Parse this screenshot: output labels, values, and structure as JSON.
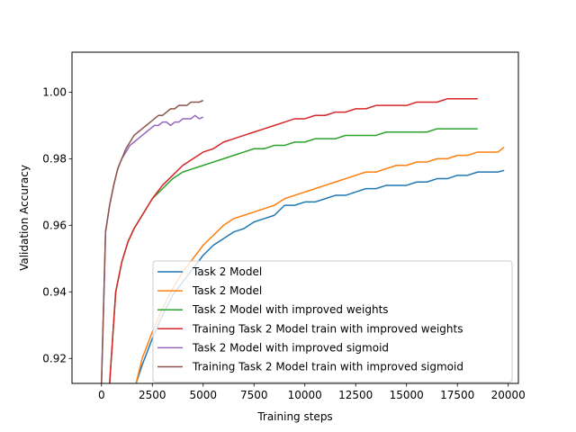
{
  "chart_data": {
    "type": "line",
    "title": "",
    "xlabel": "Training steps",
    "ylabel": "Validation Accuracy",
    "xlim": [
      -1450,
      20500
    ],
    "ylim": [
      0.9125,
      1.012
    ],
    "xticks": [
      0,
      2500,
      5000,
      7500,
      10000,
      12500,
      15000,
      17500,
      20000
    ],
    "yticks": [
      0.92,
      0.94,
      0.96,
      0.98,
      1.0
    ],
    "xtick_labels": [
      "0",
      "2500",
      "5000",
      "7500",
      "10000",
      "12500",
      "15000",
      "17500",
      "20000"
    ],
    "ytick_labels": [
      "0.92",
      "0.94",
      "0.96",
      "0.98",
      "1.00"
    ],
    "grid": false,
    "legend_position": "lower-right",
    "series": [
      {
        "name": "Task 2 Model",
        "color": "#1f77b4",
        "x": [
          1700,
          2000,
          2500,
          3000,
          3500,
          4000,
          4500,
          5000,
          5500,
          6000,
          6500,
          7000,
          7500,
          8000,
          8500,
          9000,
          9500,
          10000,
          10500,
          11000,
          11500,
          12000,
          12500,
          13000,
          13500,
          14000,
          14500,
          15000,
          15500,
          16000,
          16500,
          17000,
          17500,
          18000,
          18500,
          19000,
          19500,
          19800
        ],
        "y": [
          0.9125,
          0.918,
          0.926,
          0.933,
          0.939,
          0.943,
          0.947,
          0.951,
          0.954,
          0.956,
          0.958,
          0.959,
          0.961,
          0.962,
          0.963,
          0.966,
          0.966,
          0.967,
          0.967,
          0.968,
          0.969,
          0.969,
          0.97,
          0.971,
          0.971,
          0.972,
          0.972,
          0.972,
          0.973,
          0.973,
          0.974,
          0.974,
          0.975,
          0.975,
          0.976,
          0.976,
          0.976,
          0.9765
        ]
      },
      {
        "name": "Task 2 Model",
        "color": "#ff7f0e",
        "x": [
          1700,
          2000,
          2500,
          3000,
          3500,
          4000,
          4500,
          5000,
          5500,
          6000,
          6500,
          7000,
          7500,
          8000,
          8500,
          9000,
          9500,
          10000,
          10500,
          11000,
          11500,
          12000,
          12500,
          13000,
          13500,
          14000,
          14500,
          15000,
          15500,
          16000,
          16500,
          17000,
          17500,
          18000,
          18500,
          19000,
          19500,
          19800
        ],
        "y": [
          0.9125,
          0.92,
          0.928,
          0.935,
          0.941,
          0.946,
          0.95,
          0.954,
          0.957,
          0.96,
          0.962,
          0.963,
          0.964,
          0.965,
          0.966,
          0.968,
          0.969,
          0.97,
          0.971,
          0.972,
          0.973,
          0.974,
          0.975,
          0.976,
          0.976,
          0.977,
          0.978,
          0.978,
          0.979,
          0.979,
          0.98,
          0.98,
          0.981,
          0.981,
          0.982,
          0.982,
          0.982,
          0.9835
        ]
      },
      {
        "name": "Task 2 Model with improved weights",
        "color": "#2ca02c",
        "x": [
          400,
          700,
          1000,
          1300,
          1600,
          2000,
          2500,
          3000,
          3500,
          4000,
          4500,
          5000,
          5500,
          6000,
          6500,
          7000,
          7500,
          8000,
          8500,
          9000,
          9500,
          10000,
          10500,
          11000,
          11500,
          12000,
          12500,
          13000,
          13500,
          14000,
          14500,
          15000,
          15500,
          16000,
          16500,
          17000,
          17500,
          18000,
          18500
        ],
        "y": [
          0.9125,
          0.94,
          0.949,
          0.955,
          0.959,
          0.963,
          0.968,
          0.971,
          0.974,
          0.976,
          0.977,
          0.978,
          0.979,
          0.98,
          0.981,
          0.982,
          0.983,
          0.983,
          0.984,
          0.984,
          0.985,
          0.985,
          0.986,
          0.986,
          0.986,
          0.987,
          0.987,
          0.987,
          0.987,
          0.988,
          0.988,
          0.988,
          0.988,
          0.988,
          0.989,
          0.989,
          0.989,
          0.989,
          0.989
        ]
      },
      {
        "name": "Training Task 2 Model train with improved weights",
        "color": "#d62728",
        "x": [
          400,
          700,
          1000,
          1300,
          1600,
          2000,
          2500,
          3000,
          3500,
          4000,
          4500,
          5000,
          5500,
          6000,
          6500,
          7000,
          7500,
          8000,
          8500,
          9000,
          9500,
          10000,
          10500,
          11000,
          11500,
          12000,
          12500,
          13000,
          13500,
          14000,
          14500,
          15000,
          15500,
          16000,
          16500,
          17000,
          17500,
          18000,
          18500
        ],
        "y": [
          0.9125,
          0.94,
          0.949,
          0.955,
          0.959,
          0.963,
          0.968,
          0.972,
          0.975,
          0.978,
          0.98,
          0.982,
          0.983,
          0.985,
          0.986,
          0.987,
          0.988,
          0.989,
          0.99,
          0.991,
          0.992,
          0.992,
          0.993,
          0.993,
          0.994,
          0.994,
          0.995,
          0.995,
          0.996,
          0.996,
          0.996,
          0.996,
          0.997,
          0.997,
          0.997,
          0.998,
          0.998,
          0.998,
          0.998
        ]
      },
      {
        "name": "Task 2 Model with improved sigmoid",
        "color": "#9467bd",
        "x": [
          0,
          100,
          200,
          400,
          600,
          800,
          1000,
          1200,
          1400,
          1600,
          1800,
          2000,
          2200,
          2400,
          2600,
          2800,
          3000,
          3200,
          3400,
          3600,
          3800,
          4000,
          4200,
          4400,
          4600,
          4800,
          5000
        ],
        "y": [
          0.9125,
          0.935,
          0.958,
          0.966,
          0.972,
          0.977,
          0.98,
          0.982,
          0.984,
          0.985,
          0.986,
          0.987,
          0.988,
          0.989,
          0.99,
          0.99,
          0.991,
          0.991,
          0.99,
          0.991,
          0.991,
          0.992,
          0.992,
          0.992,
          0.993,
          0.992,
          0.9925
        ]
      },
      {
        "name": "Training Task 2 Model train with improved sigmoid",
        "color": "#8c564b",
        "x": [
          0,
          100,
          200,
          400,
          600,
          800,
          1000,
          1200,
          1400,
          1600,
          1800,
          2000,
          2200,
          2400,
          2600,
          2800,
          3000,
          3200,
          3400,
          3600,
          3800,
          4000,
          4200,
          4400,
          4600,
          4800,
          5000
        ],
        "y": [
          0.9125,
          0.935,
          0.958,
          0.966,
          0.972,
          0.977,
          0.98,
          0.983,
          0.985,
          0.987,
          0.988,
          0.989,
          0.99,
          0.991,
          0.992,
          0.993,
          0.993,
          0.994,
          0.995,
          0.995,
          0.996,
          0.996,
          0.996,
          0.997,
          0.997,
          0.997,
          0.9975
        ]
      }
    ]
  }
}
